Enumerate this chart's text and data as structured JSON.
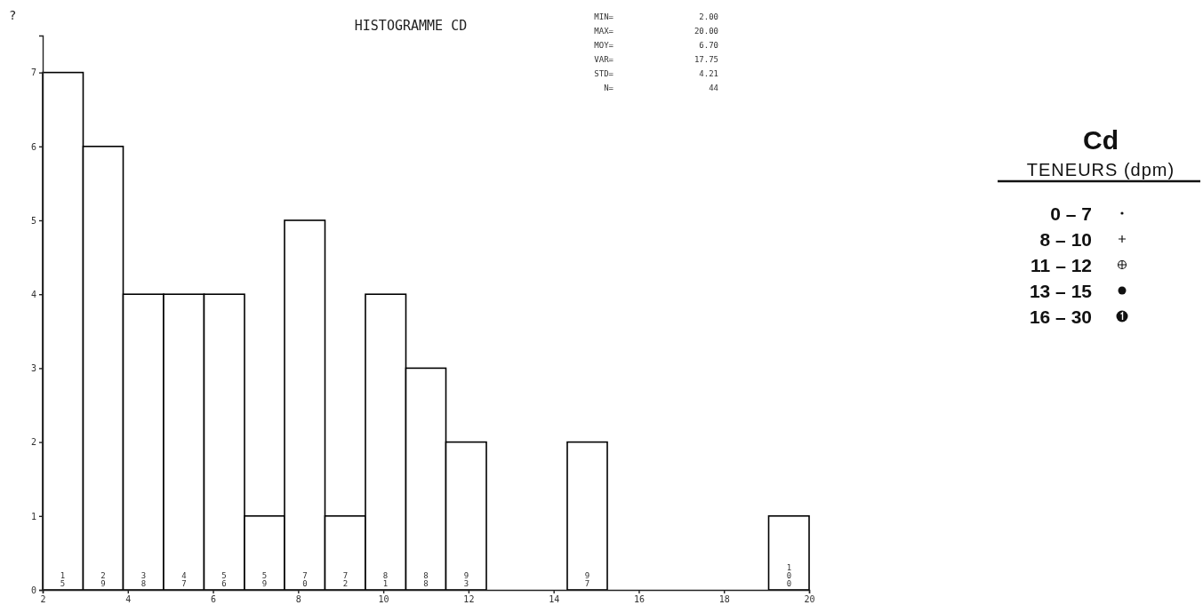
{
  "chart_data": {
    "type": "histogram",
    "title": "HISTOGRAMME CD",
    "bins": [
      2,
      2.95,
      3.89,
      4.84,
      5.79,
      6.74,
      7.68,
      8.63,
      9.58,
      10.53,
      11.47,
      12.42,
      13.37,
      14.32,
      15.26,
      16.21,
      17.16,
      18.11,
      19.05,
      20
    ],
    "values": [
      7,
      6,
      4,
      4,
      4,
      1,
      5,
      1,
      4,
      3,
      2,
      0,
      0,
      2,
      0,
      0,
      0,
      0,
      1
    ],
    "color": "#000000",
    "xlim": [
      2,
      20
    ],
    "xticks": [
      2,
      4,
      6,
      8,
      10,
      12,
      14,
      16,
      18,
      20
    ],
    "ylim": [
      0,
      7.5
    ],
    "yticks": [
      0,
      1,
      2,
      3,
      4,
      5,
      6,
      7
    ],
    "annotations": [
      "?",
      "MIN= 2.00",
      "MAX= 20.00",
      "MOY= 6.70",
      "VAR= 17.75",
      "STD= 4.21",
      "N= 44",
      "Cd",
      "TENEURS (dpm)",
      "0 – 7",
      "8 – 10",
      "11 – 12",
      "13 – 15",
      "16 – 30",
      {
        "text": "15",
        "x": 2.47,
        "y": 0
      },
      {
        "text": "29",
        "x": 3.42,
        "y": 0
      },
      {
        "text": "38",
        "x": 4.37,
        "y": 0
      },
      {
        "text": "47",
        "x": 5.32,
        "y": 0
      },
      {
        "text": "56",
        "x": 6.26,
        "y": 0
      },
      {
        "text": "59",
        "x": 7.21,
        "y": 0
      },
      {
        "text": "70",
        "x": 8.16,
        "y": 0
      },
      {
        "text": "72",
        "x": 9.11,
        "y": 0
      },
      {
        "text": "81",
        "x": 10.05,
        "y": 0
      },
      {
        "text": "88",
        "x": 11.0,
        "y": 0
      },
      {
        "text": "93",
        "x": 11.95,
        "y": 0
      },
      {
        "text": "97",
        "x": 14.79,
        "y": 0
      },
      {
        "text": "100",
        "x": 19.53,
        "y": 0
      }
    ]
  }
}
